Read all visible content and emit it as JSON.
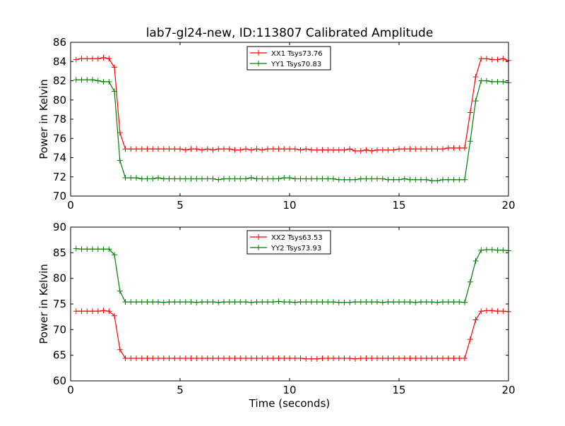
{
  "figure": {
    "title": "lab7-gl24-new, ID:113807 Calibrated Amplitude"
  },
  "chart_data": [
    {
      "type": "line",
      "title": "lab7-gl24-new, ID:113807 Calibrated Amplitude",
      "xlabel": "",
      "ylabel": "Power in Kelvin",
      "xlim": [
        0,
        20
      ],
      "ylim": [
        70,
        86
      ],
      "xticks": [
        "0",
        "5",
        "10",
        "15",
        "20"
      ],
      "yticks": [
        "70",
        "72",
        "74",
        "76",
        "78",
        "80",
        "82",
        "84",
        "86"
      ],
      "legend_position": "top-center",
      "grid": false,
      "marker": "plus",
      "series": [
        {
          "name": "XX1 Tsys73.76",
          "color": "#ff0000",
          "x": [
            0.25,
            0.5,
            0.75,
            1.0,
            1.25,
            1.5,
            1.75,
            2.0,
            2.25,
            2.5,
            2.75,
            3.0,
            3.25,
            3.5,
            3.75,
            4.0,
            4.25,
            4.5,
            4.75,
            5.0,
            5.25,
            5.5,
            5.75,
            6.0,
            6.25,
            6.5,
            6.75,
            7.0,
            7.25,
            7.5,
            7.75,
            8.0,
            8.25,
            8.5,
            8.75,
            9.0,
            9.25,
            9.5,
            9.75,
            10.0,
            10.25,
            10.5,
            10.75,
            11.0,
            11.25,
            11.5,
            11.75,
            12.0,
            12.25,
            12.5,
            12.75,
            13.0,
            13.25,
            13.5,
            13.75,
            14.0,
            14.25,
            14.5,
            14.75,
            15.0,
            15.25,
            15.5,
            15.75,
            16.0,
            16.25,
            16.5,
            16.75,
            17.0,
            17.25,
            17.5,
            17.75,
            18.0,
            18.25,
            18.5,
            18.75,
            19.0,
            19.25,
            19.5,
            19.75,
            20.0
          ],
          "values": [
            84.2,
            84.3,
            84.3,
            84.3,
            84.3,
            84.4,
            84.3,
            83.4,
            76.6,
            74.9,
            74.9,
            74.9,
            74.9,
            74.9,
            74.9,
            74.9,
            74.9,
            74.9,
            74.9,
            74.9,
            74.8,
            74.9,
            74.9,
            74.8,
            74.9,
            74.8,
            74.9,
            74.9,
            74.9,
            74.8,
            74.8,
            74.9,
            74.8,
            74.9,
            74.8,
            74.9,
            74.9,
            74.9,
            74.9,
            74.9,
            74.9,
            74.8,
            74.9,
            74.8,
            74.8,
            74.8,
            74.8,
            74.8,
            74.8,
            74.8,
            74.9,
            74.7,
            74.7,
            74.8,
            74.7,
            74.8,
            74.8,
            74.8,
            74.8,
            74.9,
            74.9,
            74.9,
            74.9,
            74.9,
            74.9,
            74.9,
            74.9,
            74.9,
            75.0,
            75.0,
            75.0,
            75.0,
            78.7,
            82.4,
            84.3,
            84.3,
            84.2,
            84.2,
            84.3,
            84.1
          ]
        },
        {
          "name": "YY1 Tsys70.83",
          "color": "#008000",
          "x": [
            0.25,
            0.5,
            0.75,
            1.0,
            1.25,
            1.5,
            1.75,
            2.0,
            2.25,
            2.5,
            2.75,
            3.0,
            3.25,
            3.5,
            3.75,
            4.0,
            4.25,
            4.5,
            4.75,
            5.0,
            5.25,
            5.5,
            5.75,
            6.0,
            6.25,
            6.5,
            6.75,
            7.0,
            7.25,
            7.5,
            7.75,
            8.0,
            8.25,
            8.5,
            8.75,
            9.0,
            9.25,
            9.5,
            9.75,
            10.0,
            10.25,
            10.5,
            10.75,
            11.0,
            11.25,
            11.5,
            11.75,
            12.0,
            12.25,
            12.5,
            12.75,
            13.0,
            13.25,
            13.5,
            13.75,
            14.0,
            14.25,
            14.5,
            14.75,
            15.0,
            15.25,
            15.5,
            15.75,
            16.0,
            16.25,
            16.5,
            16.75,
            17.0,
            17.25,
            17.5,
            17.75,
            18.0,
            18.25,
            18.5,
            18.75,
            19.0,
            19.25,
            19.5,
            19.75,
            20.0
          ],
          "values": [
            82.1,
            82.1,
            82.1,
            82.1,
            82.0,
            81.9,
            81.9,
            80.9,
            73.7,
            71.9,
            71.9,
            71.9,
            71.8,
            71.8,
            71.8,
            71.9,
            71.8,
            71.8,
            71.8,
            71.8,
            71.8,
            71.8,
            71.8,
            71.8,
            71.8,
            71.8,
            71.7,
            71.8,
            71.8,
            71.8,
            71.8,
            71.8,
            71.9,
            71.8,
            71.8,
            71.8,
            71.8,
            71.8,
            71.9,
            71.9,
            71.8,
            71.8,
            71.8,
            71.8,
            71.8,
            71.8,
            71.8,
            71.8,
            71.7,
            71.7,
            71.7,
            71.7,
            71.8,
            71.8,
            71.8,
            71.8,
            71.8,
            71.7,
            71.7,
            71.7,
            71.8,
            71.7,
            71.7,
            71.7,
            71.7,
            71.6,
            71.6,
            71.7,
            71.7,
            71.7,
            71.7,
            71.7,
            75.7,
            79.9,
            82.0,
            82.0,
            81.9,
            81.9,
            81.9,
            81.8
          ]
        }
      ]
    },
    {
      "type": "line",
      "title": "",
      "xlabel": "Time (seconds)",
      "ylabel": "Power in Kelvin",
      "xlim": [
        0,
        20
      ],
      "ylim": [
        60,
        90
      ],
      "xticks": [
        "0",
        "5",
        "10",
        "15",
        "20"
      ],
      "yticks": [
        "60",
        "65",
        "70",
        "75",
        "80",
        "85",
        "90"
      ],
      "legend_position": "top-center",
      "grid": false,
      "marker": "plus",
      "series": [
        {
          "name": "XX2 Tsys63.53",
          "color": "#ff0000",
          "x": [
            0.25,
            0.5,
            0.75,
            1.0,
            1.25,
            1.5,
            1.75,
            2.0,
            2.25,
            2.5,
            2.75,
            3.0,
            3.25,
            3.5,
            3.75,
            4.0,
            4.25,
            4.5,
            4.75,
            5.0,
            5.25,
            5.5,
            5.75,
            6.0,
            6.25,
            6.5,
            6.75,
            7.0,
            7.25,
            7.5,
            7.75,
            8.0,
            8.25,
            8.5,
            8.75,
            9.0,
            9.25,
            9.5,
            9.75,
            10.0,
            10.25,
            10.5,
            10.75,
            11.0,
            11.25,
            11.5,
            11.75,
            12.0,
            12.25,
            12.5,
            12.75,
            13.0,
            13.25,
            13.5,
            13.75,
            14.0,
            14.25,
            14.5,
            14.75,
            15.0,
            15.25,
            15.5,
            15.75,
            16.0,
            16.25,
            16.5,
            16.75,
            17.0,
            17.25,
            17.5,
            17.75,
            18.0,
            18.25,
            18.5,
            18.75,
            19.0,
            19.25,
            19.5,
            19.75,
            20.0
          ],
          "values": [
            73.6,
            73.6,
            73.6,
            73.6,
            73.6,
            73.7,
            73.6,
            72.7,
            66.1,
            64.4,
            64.4,
            64.4,
            64.4,
            64.4,
            64.4,
            64.4,
            64.4,
            64.4,
            64.4,
            64.4,
            64.4,
            64.4,
            64.4,
            64.4,
            64.4,
            64.4,
            64.4,
            64.4,
            64.4,
            64.4,
            64.4,
            64.4,
            64.4,
            64.4,
            64.4,
            64.4,
            64.4,
            64.4,
            64.4,
            64.4,
            64.4,
            64.4,
            64.3,
            64.3,
            64.3,
            64.4,
            64.4,
            64.4,
            64.4,
            64.4,
            64.4,
            64.3,
            64.4,
            64.4,
            64.4,
            64.4,
            64.4,
            64.4,
            64.4,
            64.4,
            64.4,
            64.4,
            64.4,
            64.4,
            64.4,
            64.4,
            64.4,
            64.4,
            64.4,
            64.4,
            64.4,
            64.4,
            68.1,
            71.9,
            73.6,
            73.7,
            73.7,
            73.6,
            73.6,
            73.5
          ]
        },
        {
          "name": "YY2 Tsys73.93",
          "color": "#008000",
          "x": [
            0.25,
            0.5,
            0.75,
            1.0,
            1.25,
            1.5,
            1.75,
            2.0,
            2.25,
            2.5,
            2.75,
            3.0,
            3.25,
            3.5,
            3.75,
            4.0,
            4.25,
            4.5,
            4.75,
            5.0,
            5.25,
            5.5,
            5.75,
            6.0,
            6.25,
            6.5,
            6.75,
            7.0,
            7.25,
            7.5,
            7.75,
            8.0,
            8.25,
            8.5,
            8.75,
            9.0,
            9.25,
            9.5,
            9.75,
            10.0,
            10.25,
            10.5,
            10.75,
            11.0,
            11.25,
            11.5,
            11.75,
            12.0,
            12.25,
            12.5,
            12.75,
            13.0,
            13.25,
            13.5,
            13.75,
            14.0,
            14.25,
            14.5,
            14.75,
            15.0,
            15.25,
            15.5,
            15.75,
            16.0,
            16.25,
            16.5,
            16.75,
            17.0,
            17.25,
            17.5,
            17.75,
            18.0,
            18.25,
            18.5,
            18.75,
            19.0,
            19.25,
            19.5,
            19.75,
            20.0
          ],
          "values": [
            85.8,
            85.7,
            85.7,
            85.7,
            85.7,
            85.7,
            85.7,
            84.6,
            77.5,
            75.4,
            75.4,
            75.4,
            75.4,
            75.4,
            75.4,
            75.4,
            75.3,
            75.4,
            75.4,
            75.4,
            75.4,
            75.4,
            75.3,
            75.4,
            75.4,
            75.4,
            75.3,
            75.4,
            75.4,
            75.4,
            75.4,
            75.4,
            75.3,
            75.4,
            75.4,
            75.4,
            75.4,
            75.5,
            75.4,
            75.4,
            75.3,
            75.4,
            75.4,
            75.4,
            75.4,
            75.4,
            75.4,
            75.4,
            75.3,
            75.3,
            75.3,
            75.4,
            75.4,
            75.4,
            75.4,
            75.4,
            75.3,
            75.4,
            75.4,
            75.4,
            75.4,
            75.4,
            75.3,
            75.4,
            75.4,
            75.4,
            75.3,
            75.4,
            75.4,
            75.4,
            75.4,
            75.3,
            79.3,
            83.4,
            85.5,
            85.6,
            85.6,
            85.5,
            85.5,
            85.4
          ]
        }
      ]
    }
  ]
}
